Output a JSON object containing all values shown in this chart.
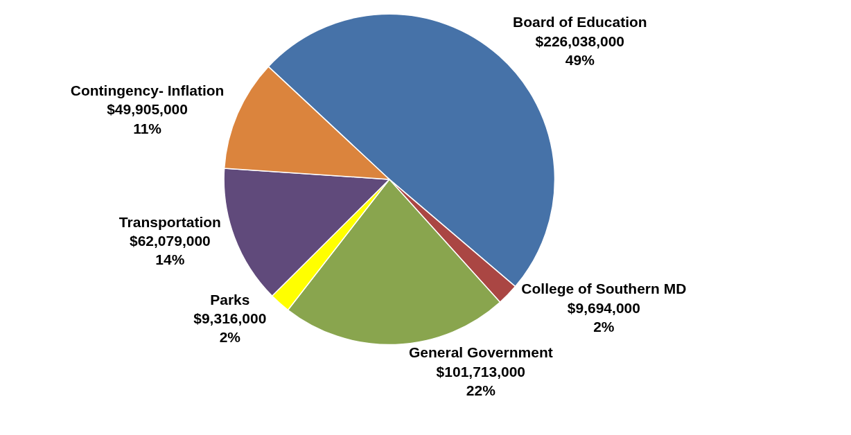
{
  "chart_data": {
    "type": "pie",
    "categories": [
      "Board of Education",
      "College of Southern MD",
      "General Government",
      "Parks",
      "Transportation",
      "Contingency- Inflation"
    ],
    "values": [
      226038000,
      9694000,
      101713000,
      9316000,
      62079000,
      49905000
    ],
    "value_labels": [
      "$226,038,000\n49%",
      "$9,694,000\n2%",
      "$101,713,000\n22%",
      "$9,316,000\n2%",
      "$62,079,000\n14%",
      "$49,905,000\n11%"
    ],
    "colors": [
      "#4672a8",
      "#aa4643",
      "#89a54e",
      "#ffff00",
      "#604a7b",
      "#db843d"
    ],
    "legend": false
  }
}
